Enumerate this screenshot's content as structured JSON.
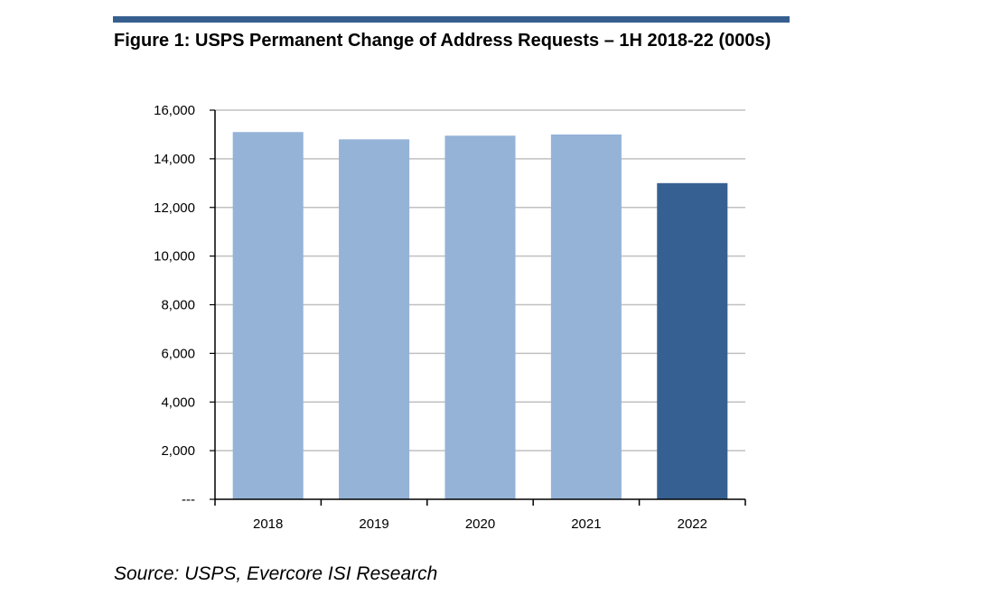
{
  "figure": {
    "title": "Figure 1: USPS Permanent Change of Address Requests – 1H 2018-22 (000s)",
    "source": "Source: USPS, Evercore ISI Research"
  },
  "colors": {
    "rule": "#365f8f",
    "bar_light": "#95b3d7",
    "bar_highlight": "#376092",
    "grid": "#c0c0c0",
    "axis": "#000000"
  },
  "chart_data": {
    "type": "bar",
    "title": "Figure 1: USPS Permanent Change of Address Requests – 1H 2018-22 (000s)",
    "xlabel": "",
    "ylabel": "",
    "categories": [
      "2018",
      "2019",
      "2020",
      "2021",
      "2022"
    ],
    "values": [
      15100,
      14800,
      14950,
      15000,
      13000
    ],
    "highlight": [
      "2022"
    ],
    "ylim": [
      0,
      16000
    ],
    "yticks": [
      0,
      2000,
      4000,
      6000,
      8000,
      10000,
      12000,
      14000,
      16000
    ],
    "ytick_labels": [
      "---",
      "2,000",
      "4,000",
      "6,000",
      "8,000",
      "10,000",
      "12,000",
      "14,000",
      "16,000"
    ],
    "grid": true,
    "legend": "none"
  }
}
